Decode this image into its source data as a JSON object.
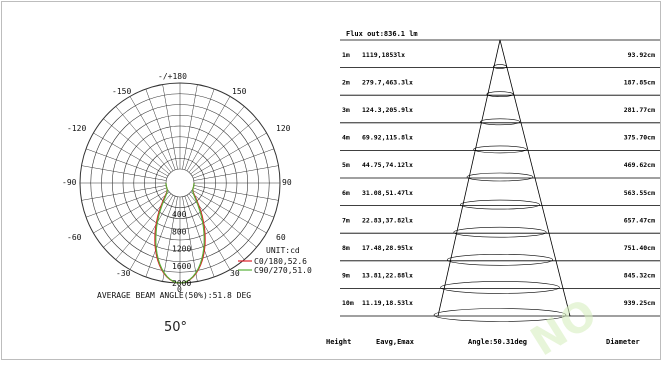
{
  "chart_data": [
    {
      "type": "polar",
      "angle_labels": {
        "top": "-/+180",
        "upper_left": "-150",
        "upper_right": "150",
        "mid_upper_left": "-120",
        "mid_upper_right": "120",
        "left": "-90",
        "right": "90",
        "lower_left": "-60",
        "lower_right": "60",
        "bottom_left": "-30",
        "bottom_right": "30",
        "bottom": "0"
      },
      "radial_ticks": [
        "400",
        "800",
        "1200",
        "1600",
        "2000"
      ],
      "radial_max": 2000,
      "unit": "UNIT:cd",
      "series": [
        {
          "name": "C0/180,52.6",
          "color": "#e0202a",
          "peak_cd": 2000,
          "half_angle_deg": 26
        },
        {
          "name": "C90/270,51.0",
          "color": "#58b038",
          "peak_cd": 2000,
          "half_angle_deg": 25
        }
      ],
      "caption": "AVERAGE BEAM ANGLE(50%):51.8 DEG",
      "beam_label": "50°"
    },
    {
      "type": "table",
      "flux": "Flux out:836.1 lm",
      "header": {
        "height": "Height",
        "illum": "Eavg,Emax",
        "angle": "Angle:50.31deg",
        "diameter": "Diameter"
      },
      "rows": [
        {
          "h": "1m",
          "e": "1119,1853lx",
          "d": "93.92cm"
        },
        {
          "h": "2m",
          "e": "279.7,463.3lx",
          "d": "187.85cm"
        },
        {
          "h": "3m",
          "e": "124.3,205.9lx",
          "d": "281.77cm"
        },
        {
          "h": "4m",
          "e": "69.92,115.8lx",
          "d": "375.70cm"
        },
        {
          "h": "5m",
          "e": "44.75,74.12lx",
          "d": "469.62cm"
        },
        {
          "h": "6m",
          "e": "31.08,51.47lx",
          "d": "563.55cm"
        },
        {
          "h": "7m",
          "e": "22.83,37.82lx",
          "d": "657.47cm"
        },
        {
          "h": "8m",
          "e": "17.48,28.95lx",
          "d": "751.40cm"
        },
        {
          "h": "9m",
          "e": "13.81,22.88lx",
          "d": "845.32cm"
        },
        {
          "h": "10m",
          "e": "11.19,18.53lx",
          "d": "939.25cm"
        }
      ]
    }
  ]
}
